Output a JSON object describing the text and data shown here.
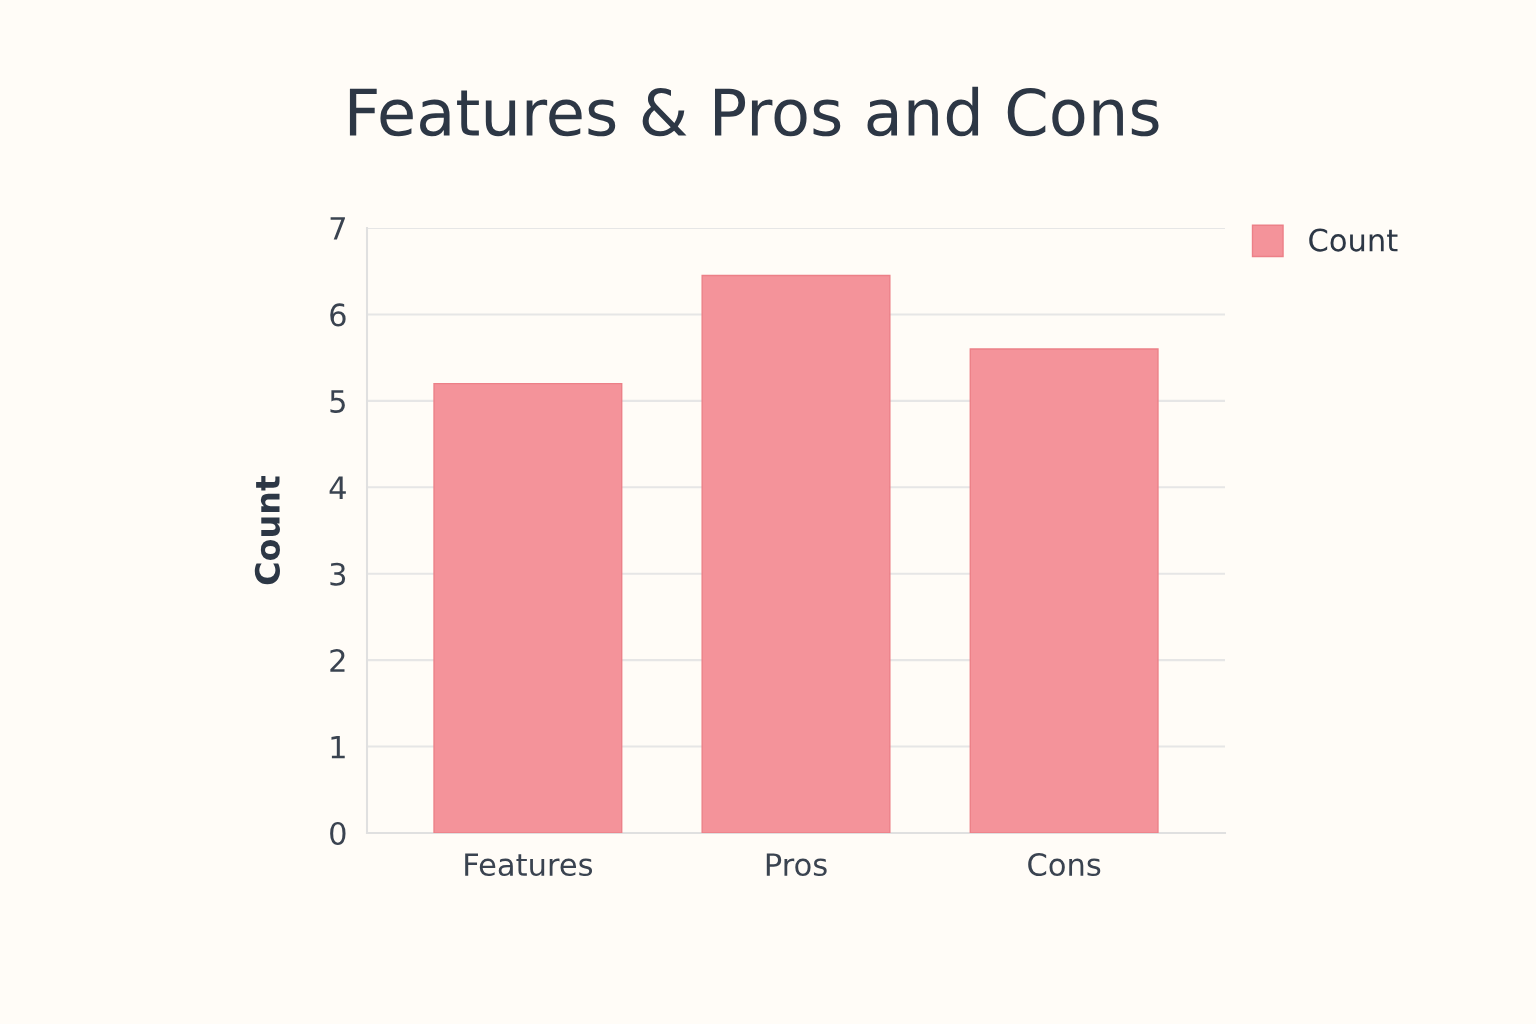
{
  "chart_data": {
    "type": "bar",
    "title": "Features & Pros and Cons",
    "ylabel": "Count",
    "categories": [
      "Features",
      "Pros",
      "Cons"
    ],
    "series": [
      {
        "name": "Count",
        "color": "#f4939a",
        "values": [
          5.2,
          6.45,
          5.6
        ]
      }
    ],
    "ylim": [
      0,
      7
    ],
    "yticks": [
      0,
      1,
      2,
      3,
      4,
      5,
      6,
      7
    ],
    "grid": "y",
    "legend": "top right"
  }
}
